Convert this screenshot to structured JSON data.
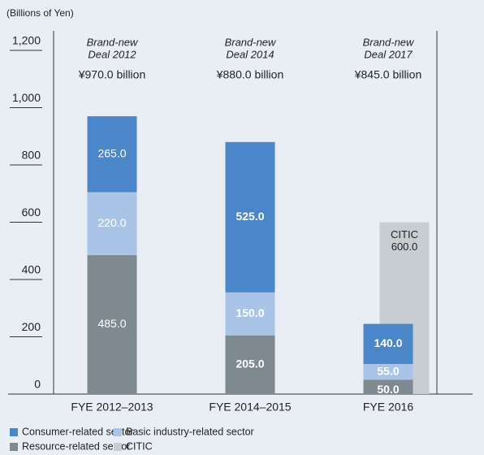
{
  "chart_data": {
    "type": "stacked_bar",
    "y_label": "(Billions of Yen)",
    "categories": [
      "FYE 2012–2013",
      "FYE 2014–2015",
      "FYE 2016"
    ],
    "annotations": [
      {
        "lines": [
          "Brand-new",
          "Deal 2012"
        ],
        "amount": "¥970.0 billion"
      },
      {
        "lines": [
          "Brand-new",
          "Deal 2014"
        ],
        "amount": "¥880.0 billion"
      },
      {
        "lines": [
          "Brand-new",
          "Deal 2017"
        ],
        "amount": "¥845.0 billion"
      }
    ],
    "series": [
      {
        "name": "Resource-related sector",
        "color": "#7f8a90",
        "values": [
          485,
          205,
          50
        ],
        "value_labels": [
          "485.0",
          "205.0",
          "50.0"
        ]
      },
      {
        "name": "Basic industry-related sector",
        "color": "#a9c4e6",
        "values": [
          220,
          150,
          55
        ],
        "value_labels": [
          "220.0",
          "150.0",
          "55.0"
        ]
      },
      {
        "name": "Consumer-related sector",
        "color": "#4a86c8",
        "values": [
          265,
          525,
          140
        ],
        "value_labels": [
          "265.0",
          "525.0",
          "140.0"
        ]
      },
      {
        "name": "CITIC",
        "color": "#c8cdd1",
        "values": [
          null,
          null,
          600
        ],
        "value_labels": [
          null,
          null,
          "600.0"
        ]
      }
    ],
    "legend_order": [
      2,
      1,
      0,
      3
    ],
    "ylim": [
      0,
      1200
    ],
    "yticks": [
      0,
      200,
      400,
      600,
      800,
      {
        "value": 1000,
        "label": "1,000"
      },
      {
        "value": 1200,
        "label": "1,200"
      }
    ]
  }
}
